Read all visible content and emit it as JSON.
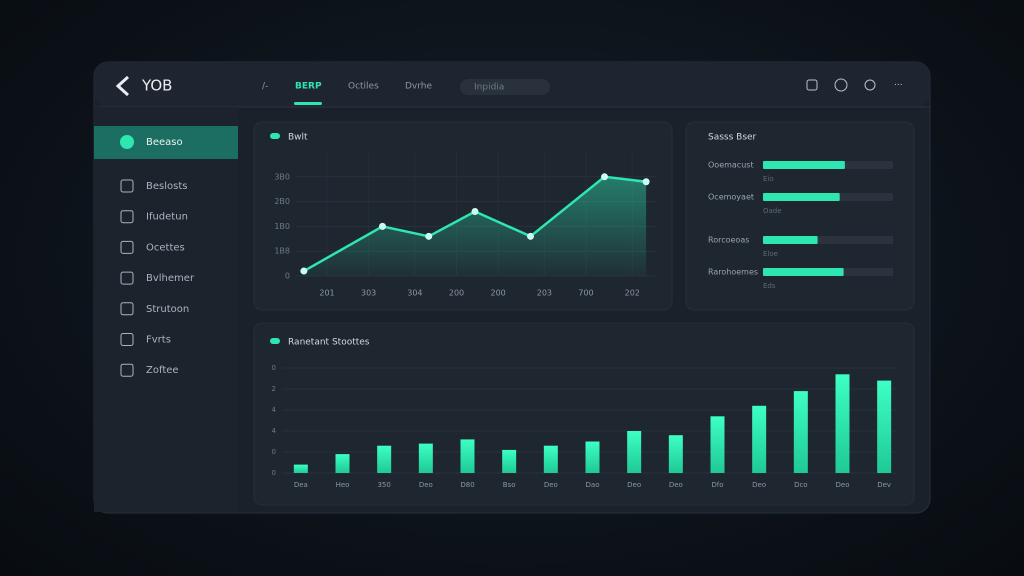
{
  "brand": "YOB",
  "nav": [
    "/-",
    "BERP",
    "Octiles",
    "Dvrhe"
  ],
  "search": "Inpidia",
  "sidebar": [
    "Beeaso",
    "Beslosts",
    "Ifudetun",
    "Ocettes",
    "Bvlhemer",
    "Strutoon",
    "Fvrts",
    "Zoftee"
  ],
  "line_chart": {
    "type": "area",
    "title": "Bwlt",
    "color": "#2ee6b0",
    "x": [
      0.3,
      2,
      3,
      4,
      5.2,
      6.8,
      7.7
    ],
    "values": [
      2,
      20,
      16,
      26,
      16,
      40,
      38
    ],
    "xlim": [
      0,
      8
    ],
    "xticks": [
      {
        "value": 0.8,
        "label": "201"
      },
      {
        "value": 1.7,
        "label": "303"
      },
      {
        "value": 2.7,
        "label": "304"
      },
      {
        "value": 3.6,
        "label": "200"
      },
      {
        "value": 4.5,
        "label": "200"
      },
      {
        "value": 5.5,
        "label": "203"
      },
      {
        "value": 6.4,
        "label": "700"
      },
      {
        "value": 7.4,
        "label": "202"
      }
    ],
    "ylim": [
      0,
      50
    ],
    "yticks": [
      {
        "value": 0,
        "label": "0"
      },
      {
        "value": 10,
        "label": "1B8"
      },
      {
        "value": 20,
        "label": "1B0"
      },
      {
        "value": 30,
        "label": "2B0"
      },
      {
        "value": 40,
        "label": "3B0"
      }
    ],
    "grid": true
  },
  "progress": {
    "title": "Sasss Bser",
    "color": "#2ee6b0",
    "xlim": [
      0,
      100
    ],
    "rows": [
      {
        "label": "Ooemacust",
        "value": 63,
        "note": "Eio"
      },
      {
        "label": "Ocemoyaet",
        "value": 59,
        "note": "Oade"
      },
      {
        "label": "Rorcoeoas",
        "value": 42,
        "note": "Eloe"
      },
      {
        "label": "Rarohoemes",
        "value": 62,
        "note": "Eds"
      }
    ]
  },
  "bar_chart": {
    "type": "bar",
    "title": "Ranetant Stoottes",
    "color": "#2ee6b0",
    "categories": [
      "Dea",
      "Heo",
      "350",
      "Deo",
      "D80",
      "Bso",
      "Deo",
      "Dao",
      "Deo",
      "Deo",
      "Dfo",
      "Deo",
      "Dco",
      "Deo",
      "Dev"
    ],
    "values": [
      0.4,
      0.9,
      1.3,
      1.4,
      1.6,
      1.1,
      1.3,
      1.5,
      2.0,
      1.8,
      2.7,
      3.2,
      3.9,
      4.7,
      4.4
    ],
    "ylim": [
      0,
      5
    ],
    "yticks": [
      {
        "value": 0,
        "label": "0"
      },
      {
        "value": 1,
        "label": "0"
      },
      {
        "value": 2,
        "label": "4"
      },
      {
        "value": 3,
        "label": "4"
      },
      {
        "value": 4,
        "label": "2"
      },
      {
        "value": 5,
        "label": "0"
      }
    ],
    "grid": true
  }
}
